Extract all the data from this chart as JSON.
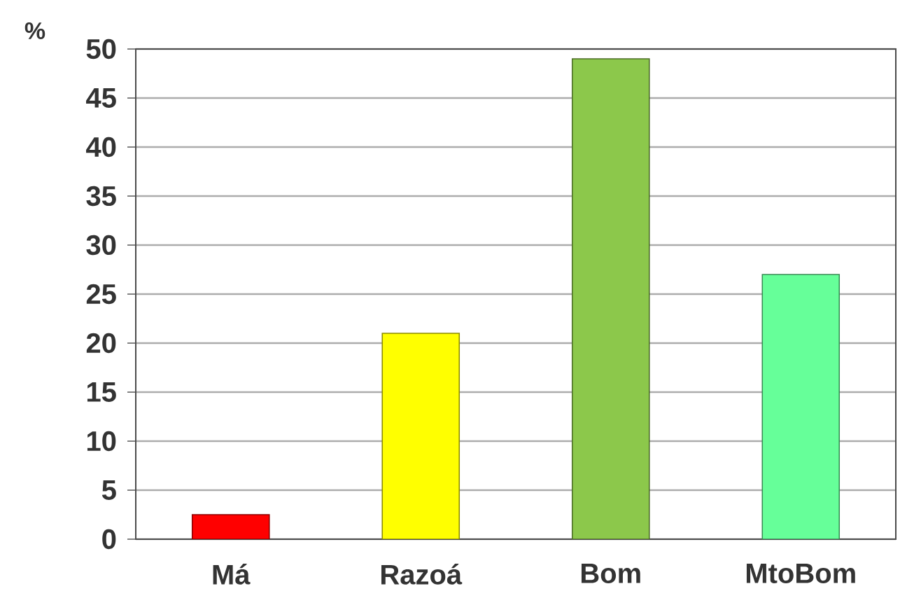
{
  "chart_data": {
    "type": "bar",
    "ylabel": "%",
    "categories": [
      "Má",
      "Razoá",
      "Bom",
      "MtoBom"
    ],
    "values": [
      2.5,
      21,
      49,
      27
    ],
    "colors": [
      "#ff0000",
      "#ffff00",
      "#8cc84b",
      "#66ff99"
    ],
    "ylim": [
      0,
      50
    ],
    "yticks": [
      0,
      5,
      10,
      15,
      20,
      25,
      30,
      35,
      40,
      45,
      50
    ],
    "grid": "y"
  }
}
